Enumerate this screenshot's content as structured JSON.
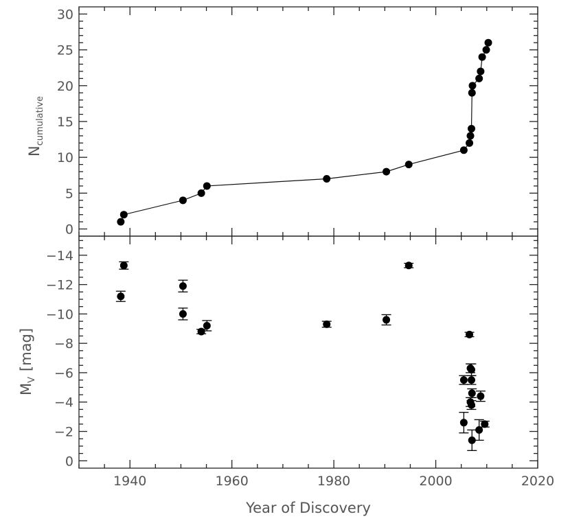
{
  "chart_data": [
    {
      "type": "line",
      "ylabel_main": "N",
      "ylabel_sub": "cumulative",
      "xlim": [
        1930,
        2020
      ],
      "ylim": [
        -1,
        31
      ],
      "yticks": [
        0,
        5,
        10,
        15,
        20,
        25,
        30
      ],
      "grid": false,
      "markers": true,
      "points": [
        [
          1938.2,
          1
        ],
        [
          1938.8,
          2
        ],
        [
          1950.4,
          4
        ],
        [
          1954.0,
          5
        ],
        [
          1955.1,
          6
        ],
        [
          1978.6,
          7
        ],
        [
          1990.3,
          8
        ],
        [
          1994.7,
          9
        ],
        [
          2005.5,
          11
        ],
        [
          2006.6,
          12
        ],
        [
          2006.8,
          13
        ],
        [
          2007.0,
          14
        ],
        [
          2007.1,
          19
        ],
        [
          2007.2,
          20
        ],
        [
          2008.5,
          21
        ],
        [
          2008.8,
          22
        ],
        [
          2009.1,
          24
        ],
        [
          2009.9,
          25
        ],
        [
          2010.3,
          26
        ]
      ]
    },
    {
      "type": "scatter",
      "ylabel_main": "M",
      "ylabel_sub": "V",
      "ylabel_unit": "[mag]",
      "xlabel": "Year of Discovery",
      "xlim": [
        1930,
        2020
      ],
      "ylim": [
        0.5,
        -15.3
      ],
      "yticks": [
        0,
        -2,
        -4,
        -6,
        -8,
        -10,
        -12,
        -14
      ],
      "ytick_labels": [
        "0",
        "−2",
        "−4",
        "−6",
        "−8",
        "−10",
        "−12",
        "−14"
      ],
      "xticks": [
        1940,
        1960,
        1980,
        2000,
        2020
      ],
      "grid": false,
      "points": [
        {
          "x": 1938.2,
          "y": -11.2,
          "err": 0.35
        },
        {
          "x": 1938.8,
          "y": -13.3,
          "err": 0.25
        },
        {
          "x": 1950.4,
          "y": -11.9,
          "err": 0.4
        },
        {
          "x": 1950.4,
          "y": -10.0,
          "err": 0.4
        },
        {
          "x": 1954.0,
          "y": -8.8,
          "err": 0.15
        },
        {
          "x": 1955.1,
          "y": -9.2,
          "err": 0.35
        },
        {
          "x": 1978.6,
          "y": -9.3,
          "err": 0.2
        },
        {
          "x": 1990.3,
          "y": -9.6,
          "err": 0.35
        },
        {
          "x": 1994.7,
          "y": -13.3,
          "err": 0.15
        },
        {
          "x": 2006.6,
          "y": -8.6,
          "err": 0.15
        },
        {
          "x": 2005.5,
          "y": -5.5,
          "err": 0.3
        },
        {
          "x": 2006.8,
          "y": -6.3,
          "err": 0.3
        },
        {
          "x": 2007.0,
          "y": -6.2,
          "err": 0.4
        },
        {
          "x": 2007.0,
          "y": -5.5,
          "err": 0.3
        },
        {
          "x": 2007.1,
          "y": -4.6,
          "err": 0.3
        },
        {
          "x": 2006.8,
          "y": -4.0,
          "err": 0.3
        },
        {
          "x": 2007.0,
          "y": -3.8,
          "err": 0.3
        },
        {
          "x": 2008.8,
          "y": -4.4,
          "err": 0.35
        },
        {
          "x": 2005.5,
          "y": -2.6,
          "err": 0.7
        },
        {
          "x": 2009.6,
          "y": -2.5,
          "err": 0.2
        },
        {
          "x": 2008.5,
          "y": -2.1,
          "err": 0.7
        },
        {
          "x": 2007.1,
          "y": -1.4,
          "err": 0.7
        }
      ]
    }
  ]
}
